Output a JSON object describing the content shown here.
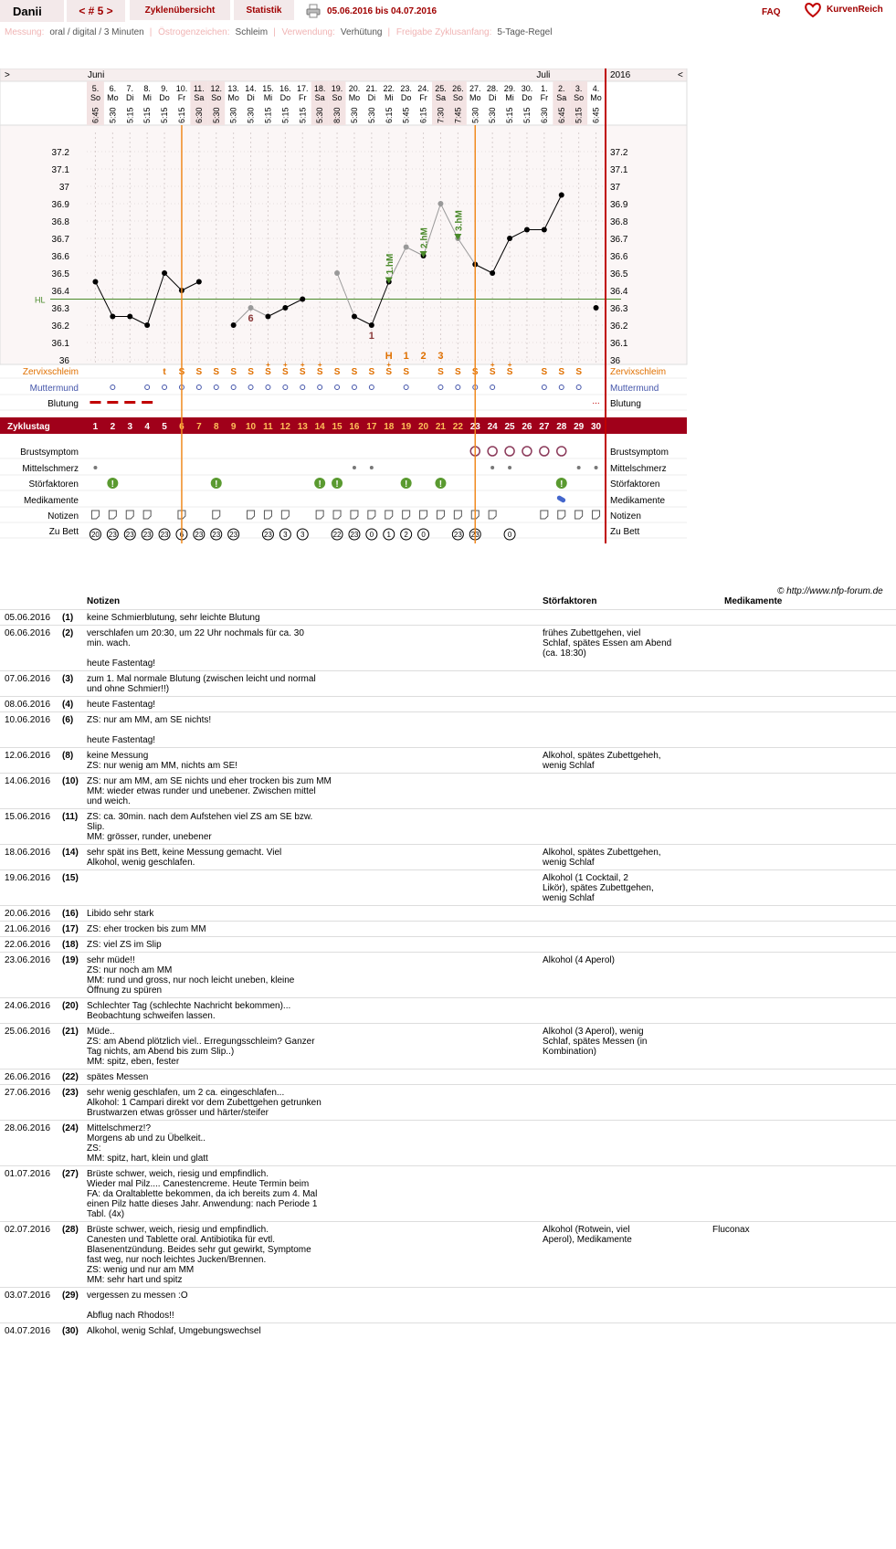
{
  "header": {
    "user": "Danii",
    "cycle": "< # 5 >",
    "tab_overview": "Zyklenübersicht",
    "tab_stats": "Statistik",
    "date_range": "05.06.2016 bis 04.07.2016",
    "faq": "FAQ",
    "brand": "KurvenReich"
  },
  "info": {
    "messung_label": "Messung:",
    "messung": "oral / digital / 3 Minuten",
    "zeichen_label": "Östrogenzeichen:",
    "zeichen": "Schleim",
    "verwendung_label": "Verwendung:",
    "verwendung": "Verhütung",
    "freigabe_label": "Freigabe Zyklusanfang:",
    "freigabe": "5-Tage-Regel"
  },
  "chart_data": {
    "type": "line",
    "year": "2016",
    "month_labels": [
      {
        "day": 1,
        "label": "Juni"
      },
      {
        "day": 27,
        "label": "Juli"
      }
    ],
    "nav_prev": ">",
    "nav_next": "<",
    "dates": [
      "5.",
      "6.",
      "7.",
      "8.",
      "9.",
      "10.",
      "11.",
      "12.",
      "13.",
      "14.",
      "15.",
      "16.",
      "17.",
      "18.",
      "19.",
      "20.",
      "21.",
      "22.",
      "23.",
      "24.",
      "25.",
      "26.",
      "27.",
      "28.",
      "29.",
      "30.",
      "1.",
      "2.",
      "3.",
      "4."
    ],
    "weekdays": [
      "So",
      "Mo",
      "Di",
      "Mi",
      "Do",
      "Fr",
      "Sa",
      "So",
      "Mo",
      "Di",
      "Mi",
      "Do",
      "Fr",
      "Sa",
      "So",
      "Mo",
      "Di",
      "Mi",
      "Do",
      "Fr",
      "Sa",
      "So",
      "Mo",
      "Di",
      "Mi",
      "Do",
      "Fr",
      "Sa",
      "So",
      "Mo"
    ],
    "times": [
      "6:45",
      "5:30",
      "5:15",
      "5:15",
      "5:15",
      "6:15",
      "6:30",
      "5:30",
      "5:30",
      "5:30",
      "5:15",
      "5:15",
      "5:15",
      "5:30",
      "8:30",
      "5:30",
      "5:30",
      "6:15",
      "5:45",
      "6:15",
      "7:30",
      "7:45",
      "5:30",
      "5:30",
      "5:15",
      "5:15",
      "6:30",
      "6:45",
      "5:15",
      "6:45"
    ],
    "weekend_days": [
      1,
      7,
      8,
      14,
      15,
      21,
      22,
      28,
      29
    ],
    "y_ticks": [
      "37.2",
      "37.1",
      "37",
      "36.9",
      "36.8",
      "36.7",
      "36.6",
      "36.5",
      "36.4",
      "36.3",
      "36.2",
      "36.1",
      "36"
    ],
    "ylim": [
      36.0,
      37.2
    ],
    "hl_label": "HL",
    "hl_value": 36.35,
    "temperatures": [
      36.45,
      36.25,
      36.25,
      36.2,
      36.5,
      36.4,
      36.45,
      null,
      36.2,
      36.3,
      36.25,
      36.3,
      36.35,
      null,
      36.5,
      36.25,
      36.2,
      36.45,
      36.65,
      36.6,
      36.9,
      36.7,
      36.55,
      36.5,
      36.7,
      36.75,
      36.75,
      36.95,
      null,
      36.3
    ],
    "excluded_days": [
      10,
      15,
      19,
      21,
      22
    ],
    "temp_annotations": [
      {
        "day": 10,
        "label": "6"
      },
      {
        "day": 17,
        "label": "1"
      }
    ],
    "hm_labels": [
      {
        "day": 18,
        "label": "1.hM"
      },
      {
        "day": 20,
        "label": "2.hM"
      },
      {
        "day": 22,
        "label": "3.hM"
      }
    ],
    "peak_labels": [
      {
        "day": 18,
        "label": "H"
      },
      {
        "day": 19,
        "label": "1"
      },
      {
        "day": 20,
        "label": "2"
      },
      {
        "day": 21,
        "label": "3"
      }
    ],
    "vertical_lines": [
      5.5,
      22.5
    ],
    "row_labels": {
      "zervix": "Zervixschleim",
      "mumu": "Muttermund",
      "blutung": "Blutung",
      "zyklustag": "Zyklustag",
      "brust": "Brustsymptom",
      "mittel": "Mittelschmerz",
      "stoer": "Störfaktoren",
      "medi": "Medikamente",
      "notiz": "Notizen",
      "bett": "Zu Bett"
    },
    "zervix": [
      "",
      "",
      "",
      "",
      "t",
      "S",
      "S",
      "S",
      "S",
      "S",
      "S+",
      "S+",
      "S+",
      "S+",
      "S",
      "S",
      "S",
      "S+",
      "S",
      "",
      "S",
      "S",
      "S",
      "S+",
      "S+",
      "",
      "S",
      "S",
      "S",
      ""
    ],
    "muttermund_days": [
      2,
      4,
      5,
      6,
      7,
      8,
      9,
      10,
      11,
      12,
      13,
      14,
      15,
      16,
      17,
      19,
      21,
      22,
      23,
      24,
      27,
      28,
      29
    ],
    "blutung_days": [
      1,
      2,
      3,
      4
    ],
    "blutung_spot_days": [
      30
    ],
    "zyklustag": [
      "1",
      "2",
      "3",
      "4",
      "5",
      "6",
      "7",
      "8",
      "9",
      "10",
      "11",
      "12",
      "13",
      "14",
      "15",
      "16",
      "17",
      "18",
      "19",
      "20",
      "21",
      "22",
      "23",
      "24",
      "25",
      "26",
      "27",
      "28",
      "29",
      "30"
    ],
    "brust_days": [
      23,
      24,
      25,
      26,
      27,
      28
    ],
    "mittel_days": [
      1,
      16,
      17,
      24,
      25,
      29,
      30
    ],
    "stoer_days": [
      2,
      8,
      14,
      15,
      19,
      21,
      28
    ],
    "medi_days": [
      28
    ],
    "notiz_days": [
      1,
      2,
      3,
      4,
      6,
      8,
      10,
      11,
      12,
      14,
      15,
      16,
      17,
      18,
      19,
      20,
      21,
      22,
      23,
      24,
      27,
      28,
      29,
      30
    ],
    "bett": [
      "20",
      "23",
      "23",
      "23",
      "23",
      "6",
      "23",
      "23",
      "23",
      "",
      "23",
      "3",
      "3",
      "",
      "22",
      "23",
      "0",
      "1",
      "2",
      "0",
      "",
      "23",
      "23",
      "",
      "0",
      "",
      "",
      "",
      "",
      ""
    ],
    "copyright": "© http://www.nfp-forum.de"
  },
  "notes": {
    "col_notizen": "Notizen",
    "col_stoer": "Störfaktoren",
    "col_medi": "Medikamente",
    "rows": [
      {
        "date": "05.06.2016",
        "day": "(1)",
        "text": "keine Schmierblutung, sehr leichte Blutung",
        "stoer": "",
        "medi": ""
      },
      {
        "date": "06.06.2016",
        "day": "(2)",
        "text": "verschlafen um 20:30, um 22 Uhr nochmals für ca. 30\nmin. wach.\n\nheute Fastentag!",
        "stoer": "frühes Zubettgehen, viel\nSchlaf, spätes Essen am Abend\n(ca. 18:30)",
        "medi": ""
      },
      {
        "date": "07.06.2016",
        "day": "(3)",
        "text": "zum 1. Mal normale Blutung (zwischen leicht und normal\nund ohne Schmier!!)",
        "stoer": "",
        "medi": ""
      },
      {
        "date": "08.06.2016",
        "day": "(4)",
        "text": "heute Fastentag!",
        "stoer": "",
        "medi": ""
      },
      {
        "date": "10.06.2016",
        "day": "(6)",
        "text": "ZS: nur am MM, am SE nichts!\n\nheute Fastentag!",
        "stoer": "",
        "medi": ""
      },
      {
        "date": "12.06.2016",
        "day": "(8)",
        "text": "keine Messung\nZS: nur wenig am MM, nichts am SE!",
        "stoer": "Alkohol, spätes Zubettgeheh,\nwenig Schlaf",
        "medi": ""
      },
      {
        "date": "14.06.2016",
        "day": "(10)",
        "text": "ZS: nur am MM, am SE nichts und eher trocken bis zum MM\nMM: wieder etwas runder und unebener. Zwischen mittel\nund weich.",
        "stoer": "",
        "medi": ""
      },
      {
        "date": "15.06.2016",
        "day": "(11)",
        "text": "ZS: ca. 30min. nach dem Aufstehen viel ZS am SE bzw.\nSlip.\nMM: grösser, runder, unebener",
        "stoer": "",
        "medi": ""
      },
      {
        "date": "18.06.2016",
        "day": "(14)",
        "text": "sehr spät ins Bett, keine Messung gemacht. Viel\nAlkohol, wenig geschlafen.",
        "stoer": "Alkohol, spätes Zubettgehen,\nwenig Schlaf",
        "medi": ""
      },
      {
        "date": "19.06.2016",
        "day": "(15)",
        "text": "",
        "stoer": "Alkohol (1 Cocktail, 2\nLikör), spätes Zubettgehen,\nwenig Schlaf",
        "medi": ""
      },
      {
        "date": "20.06.2016",
        "day": "(16)",
        "text": "Libido sehr stark",
        "stoer": "",
        "medi": ""
      },
      {
        "date": "21.06.2016",
        "day": "(17)",
        "text": "ZS: eher trocken bis zum MM",
        "stoer": "",
        "medi": ""
      },
      {
        "date": "22.06.2016",
        "day": "(18)",
        "text": "ZS: viel ZS im Slip",
        "stoer": "",
        "medi": ""
      },
      {
        "date": "23.06.2016",
        "day": "(19)",
        "text": "sehr müde!!\nZS: nur noch am MM\nMM: rund und gross, nur noch leicht uneben, kleine\nÖffnung zu spüren",
        "stoer": "Alkohol (4 Aperol)",
        "medi": ""
      },
      {
        "date": "24.06.2016",
        "day": "(20)",
        "text": "Schlechter Tag (schlechte Nachricht bekommen)...\nBeobachtung schweifen lassen.",
        "stoer": "",
        "medi": ""
      },
      {
        "date": "25.06.2016",
        "day": "(21)",
        "text": "Müde..\nZS: am Abend plötzlich viel.. Erregungsschleim? Ganzer\nTag nichts, am Abend bis zum Slip..)\nMM: spitz, eben, fester",
        "stoer": "Alkohol (3 Aperol), wenig\nSchlaf, spätes Messen (in\nKombination)",
        "medi": ""
      },
      {
        "date": "26.06.2016",
        "day": "(22)",
        "text": "spätes Messen",
        "stoer": "",
        "medi": ""
      },
      {
        "date": "27.06.2016",
        "day": "(23)",
        "text": "sehr wenig geschlafen, um 2 ca. eingeschlafen...\nAlkohol: 1 Campari direkt vor dem Zubettgehen getrunken\nBrustwarzen etwas grösser und härter/steifer",
        "stoer": "",
        "medi": ""
      },
      {
        "date": "28.06.2016",
        "day": "(24)",
        "text": "Mittelschmerz!?\nMorgens ab und zu Übelkeit..\nZS:\nMM: spitz, hart, klein und glatt",
        "stoer": "",
        "medi": ""
      },
      {
        "date": "01.07.2016",
        "day": "(27)",
        "text": "Brüste schwer, weich, riesig und empfindlich.\nWieder mal Pilz.... Canestencreme. Heute Termin beim\nFA: da Oraltablette bekommen, da ich bereits zum 4. Mal\neinen Pilz hatte dieses Jahr. Anwendung: nach Periode 1\nTabl. (4x)",
        "stoer": "",
        "medi": ""
      },
      {
        "date": "02.07.2016",
        "day": "(28)",
        "text": "Brüste schwer, weich, riesig und empfindlich.\nCanesten und Tablette oral. Antibiotika für evtl.\nBlasenentzündung. Beides sehr gut gewirkt, Symptome\nfast weg, nur noch leichtes Jucken/Brennen.\nZS: wenig und nur am MM\nMM: sehr hart und spitz",
        "stoer": "Alkohol (Rotwein, viel\nAperol), Medikamente",
        "medi": "Fluconax"
      },
      {
        "date": "03.07.2016",
        "day": "(29)",
        "text": "vergessen zu messen :O\n\nAbflug nach Rhodos!!",
        "stoer": "",
        "medi": ""
      },
      {
        "date": "04.07.2016",
        "day": "(30)",
        "text": "Alkohol, wenig Schlaf, Umgebungswechsel",
        "stoer": "",
        "medi": ""
      }
    ]
  }
}
